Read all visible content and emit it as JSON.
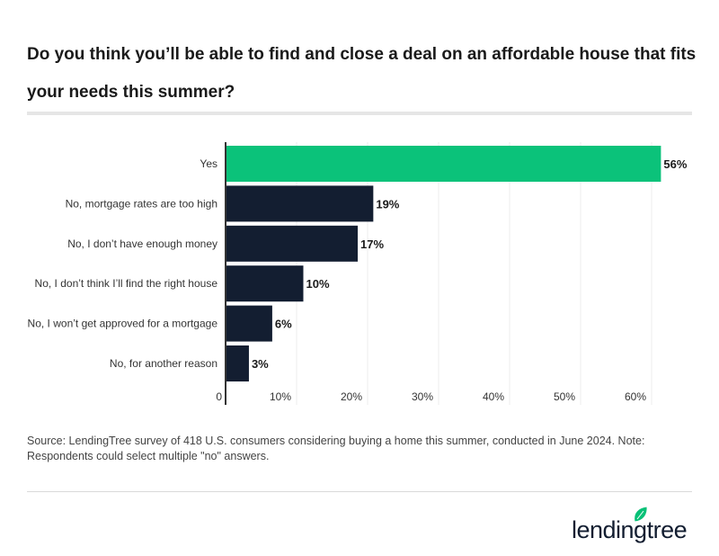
{
  "title": "Do you think you’ll be able to find and close a deal on an affordable house that fits your needs this summer?",
  "source": "Source: LendingTree survey of 418 U.S. consumers considering buying a home this summer, conducted in June 2024. Note: Respondents could select multiple \"no\" answers.",
  "logo": {
    "text": "lendingtree",
    "icon": "leaf-icon",
    "color": "#08c177"
  },
  "chart_data": {
    "type": "bar",
    "orientation": "horizontal",
    "categories": [
      "Yes",
      "No, mortgage rates are too high",
      "No, I don’t have enough money",
      "No, I don’t think I’ll find the right house",
      "No, I won’t get approved for a mortgage",
      "No, for another reason"
    ],
    "values": [
      56,
      19,
      17,
      10,
      6,
      3
    ],
    "data_labels": [
      "56%",
      "19%",
      "17%",
      "10%",
      "6%",
      "3%"
    ],
    "colors": [
      "#0bc27a",
      "#131e31",
      "#131e31",
      "#131e31",
      "#131e31",
      "#131e31"
    ],
    "xlim": [
      0,
      60
    ],
    "x_ticks": [
      "0",
      "10%",
      "20%",
      "30%",
      "40%",
      "50%",
      "60%"
    ],
    "grid": true
  }
}
